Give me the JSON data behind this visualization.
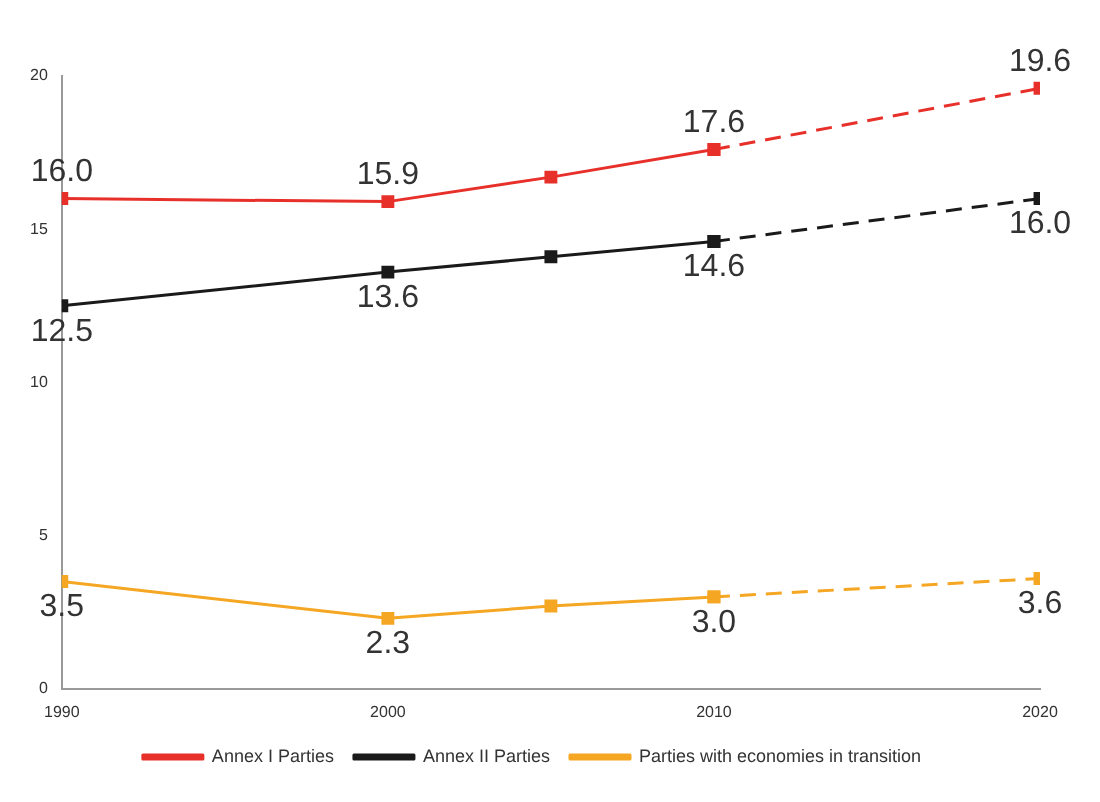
{
  "chart_data": {
    "type": "line",
    "xlim": [
      1990,
      2020
    ],
    "xticks": [
      1990,
      2000,
      2010,
      2020
    ],
    "ylim": [
      0,
      20
    ],
    "yticks": [
      0,
      5,
      10,
      15,
      20
    ],
    "grid": false,
    "legend": "bottom",
    "marker": "square",
    "series": [
      {
        "name": "Annex I Parties",
        "color": "#e8302a",
        "x": [
          1990,
          2000,
          2005,
          2010
        ],
        "values": [
          16.0,
          15.9,
          16.7,
          17.6
        ],
        "value_labels": [
          "16.0",
          "15.9",
          null,
          "17.6"
        ],
        "line_style": "solid"
      },
      {
        "color": "#e8302a",
        "x": [
          2010,
          2020
        ],
        "values": [
          17.6,
          19.6
        ],
        "value_labels": [
          null,
          "19.6"
        ],
        "line_style": "dashed"
      },
      {
        "name": "Annex II Parties",
        "color": "#1a1a1a",
        "x": [
          1990,
          2000,
          2005,
          2010
        ],
        "values": [
          12.5,
          13.6,
          14.1,
          14.6
        ],
        "value_labels": [
          "12.5",
          "13.6",
          null,
          "14.6"
        ],
        "line_style": "solid"
      },
      {
        "color": "#1a1a1a",
        "x": [
          2010,
          2020
        ],
        "values": [
          14.6,
          16.0
        ],
        "value_labels": [
          null,
          "16.0"
        ],
        "line_style": "dashed"
      },
      {
        "name": "Parties with economies in transition",
        "color": "#f5a623",
        "x": [
          1990,
          2000,
          2005,
          2010
        ],
        "values": [
          3.5,
          2.3,
          2.7,
          3.0
        ],
        "value_labels": [
          "3.5",
          "2.3",
          null,
          "3.0"
        ],
        "line_style": "solid"
      },
      {
        "color": "#f5a623",
        "x": [
          2010,
          2020
        ],
        "values": [
          3.0,
          3.6
        ],
        "value_labels": [
          null,
          "3.6"
        ],
        "line_style": "dashed"
      }
    ]
  }
}
